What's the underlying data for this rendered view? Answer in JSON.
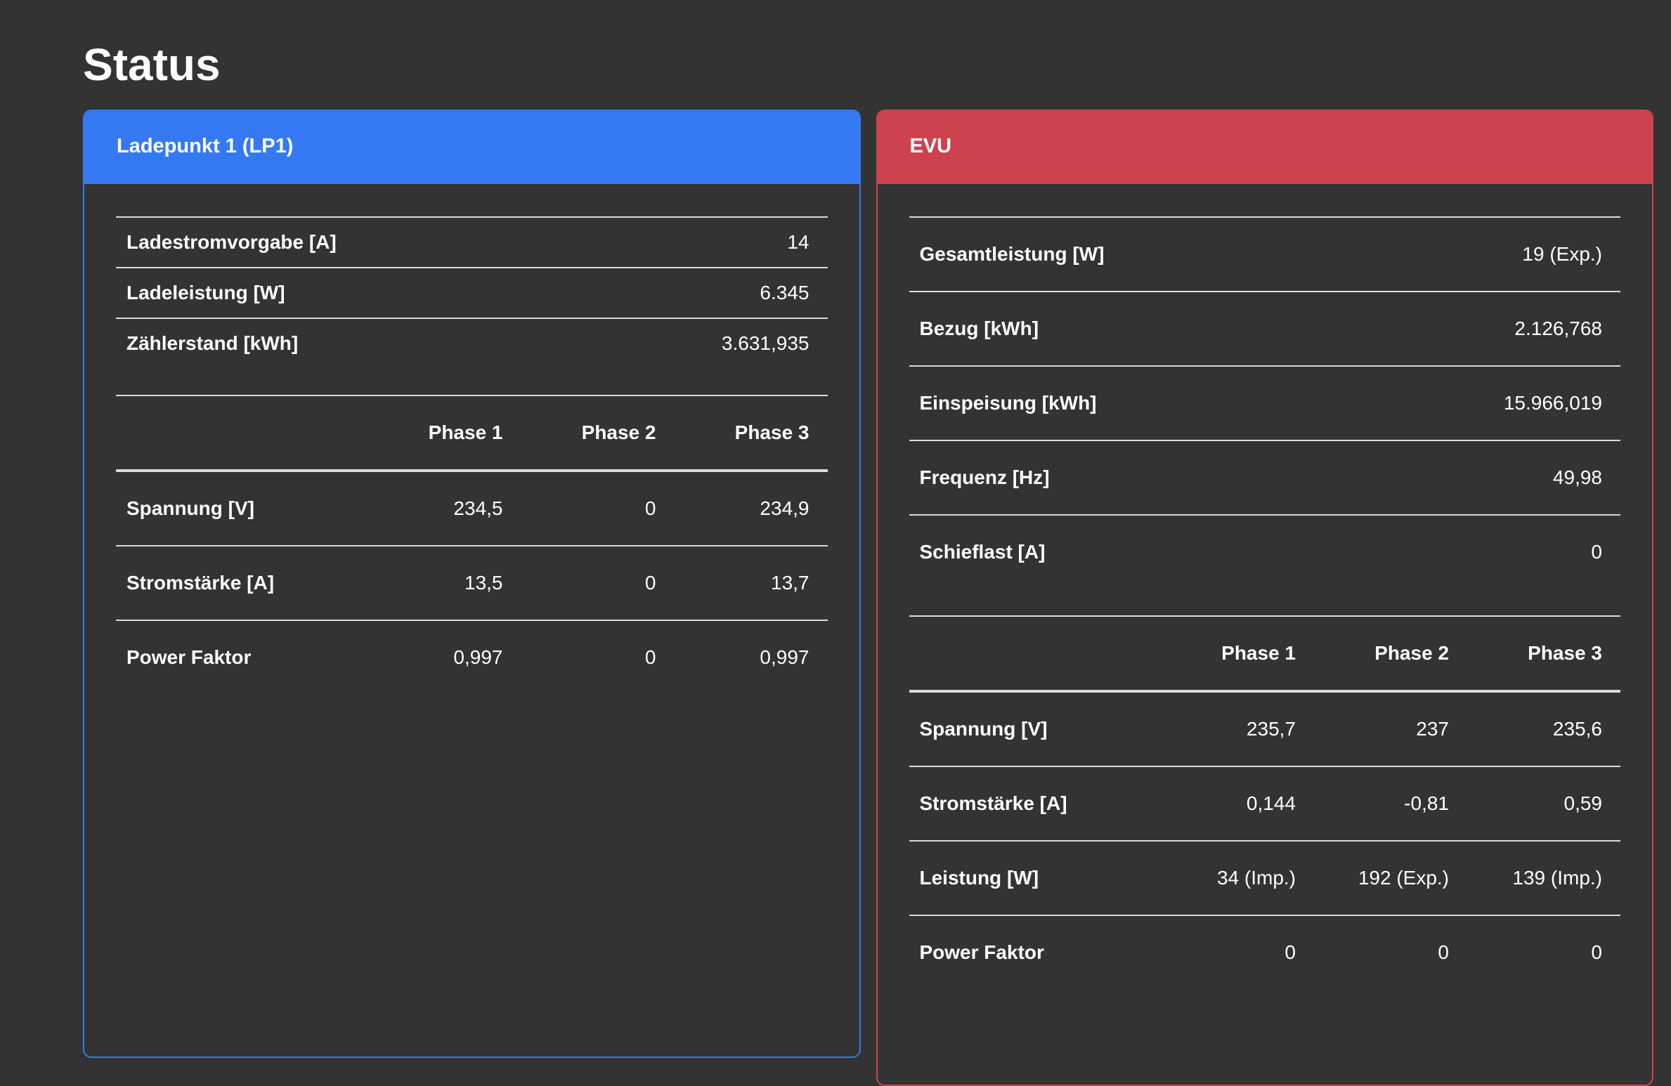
{
  "page": {
    "title": "Status"
  },
  "colors": {
    "background": "#333333",
    "divider": "#d9dbdd",
    "lp1_accent": "#3579f2",
    "evu_accent": "#cc434d"
  },
  "cards": [
    {
      "id": "lp1",
      "title": "Ladepunkt 1 (LP1)",
      "accent": "#3579f2",
      "summary_rows": [
        {
          "label": "Ladestromvorgabe [A]",
          "value": "14"
        },
        {
          "label": "Ladeleistung [W]",
          "value": "6.345"
        },
        {
          "label": "Zählerstand [kWh]",
          "value": "3.631,935"
        }
      ],
      "phase_table": {
        "headers": [
          "Phase 1",
          "Phase 2",
          "Phase 3"
        ],
        "rows": [
          {
            "label": "Spannung [V]",
            "values": [
              "234,5",
              "0",
              "234,9"
            ]
          },
          {
            "label": "Stromstärke [A]",
            "values": [
              "13,5",
              "0",
              "13,7"
            ]
          },
          {
            "label": "Power Faktor",
            "values": [
              "0,997",
              "0",
              "0,997"
            ]
          }
        ]
      }
    },
    {
      "id": "evu",
      "title": "EVU",
      "accent": "#cc434d",
      "summary_rows": [
        {
          "label": "Gesamtleistung [W]",
          "value": "19 (Exp.)"
        },
        {
          "label": "Bezug [kWh]",
          "value": "2.126,768"
        },
        {
          "label": "Einspeisung [kWh]",
          "value": "15.966,019"
        },
        {
          "label": "Frequenz [Hz]",
          "value": "49,98"
        },
        {
          "label": "Schieflast [A]",
          "value": "0"
        }
      ],
      "phase_table": {
        "headers": [
          "Phase 1",
          "Phase 2",
          "Phase 3"
        ],
        "rows": [
          {
            "label": "Spannung [V]",
            "values": [
              "235,7",
              "237",
              "235,6"
            ]
          },
          {
            "label": "Stromstärke [A]",
            "values": [
              "0,144",
              "-0,81",
              "0,59"
            ]
          },
          {
            "label": "Leistung [W]",
            "values": [
              "34 (Imp.)",
              "192 (Exp.)",
              "139 (Imp.)"
            ]
          },
          {
            "label": "Power Faktor",
            "values": [
              "0",
              "0",
              "0"
            ]
          }
        ]
      }
    }
  ]
}
